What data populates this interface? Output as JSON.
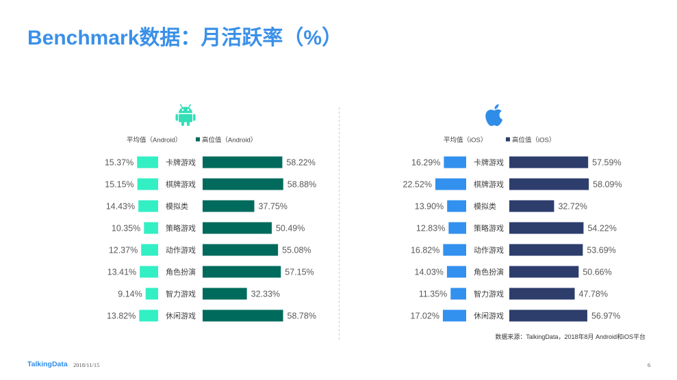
{
  "slide": {
    "title": "Benchmark数据：月活跃率（%）",
    "source": "数据来源：TalkingData，2018年8月 Android和iOS平台"
  },
  "footer": {
    "brand": "TalkingData",
    "date": "2018/11/15",
    "page": "6"
  },
  "icons": {
    "android": "android-icon",
    "ios": "apple-icon"
  },
  "colors": {
    "title": "#3a90e8",
    "brand": "#2f8de8",
    "android_icon": "#34dfb8",
    "ios_icon": "#2f8de8",
    "divider": "#c8c8c8"
  },
  "chart_data": [
    {
      "type": "bar",
      "orientation": "horizontal",
      "arrangement": "back-to-back",
      "unit": "%",
      "legend_position": "top",
      "grid": false,
      "categories": [
        "卡牌游戏",
        "棋牌游戏",
        "模拟类",
        "策略游戏",
        "动作游戏",
        "角色扮演",
        "智力游戏",
        "休闲游戏"
      ],
      "series": [
        {
          "name": "平均值（Android）",
          "values": [
            15.37,
            15.15,
            14.43,
            10.35,
            12.37,
            13.41,
            9.14,
            13.82
          ],
          "labels": [
            "15.37%",
            "15.15%",
            "14.43%",
            "10.35%",
            "12.37%",
            "13.41%",
            "9.14%",
            "13.82%"
          ],
          "color": "#32efc4"
        },
        {
          "name": "高位值（Android）",
          "values": [
            58.22,
            58.88,
            37.75,
            50.49,
            55.08,
            57.15,
            32.33,
            58.78
          ],
          "labels": [
            "58.22%",
            "58.88%",
            "37.75%",
            "50.49%",
            "55.08%",
            "57.15%",
            "32.33%",
            "58.78%"
          ],
          "color": "#006b5c"
        }
      ]
    },
    {
      "type": "bar",
      "orientation": "horizontal",
      "arrangement": "back-to-back",
      "unit": "%",
      "legend_position": "top",
      "grid": false,
      "categories": [
        "卡牌游戏",
        "棋牌游戏",
        "模拟类",
        "策略游戏",
        "动作游戏",
        "角色扮演",
        "智力游戏",
        "休闲游戏"
      ],
      "series": [
        {
          "name": "平均值（iOS）",
          "values": [
            16.29,
            22.52,
            13.9,
            12.83,
            16.82,
            14.03,
            11.35,
            17.02
          ],
          "labels": [
            "16.29%",
            "22.52%",
            "13.90%",
            "12.83%",
            "16.82%",
            "14.03%",
            "11.35%",
            "17.02%"
          ],
          "color": "#3290ef"
        },
        {
          "name": "高位值（iOS）",
          "values": [
            57.59,
            58.09,
            32.72,
            54.22,
            53.69,
            50.66,
            47.78,
            56.97
          ],
          "labels": [
            "57.59%",
            "58.09%",
            "32.72%",
            "54.22%",
            "53.69%",
            "50.66%",
            "47.78%",
            "56.97%"
          ],
          "color": "#2d3d6c"
        }
      ]
    }
  ]
}
